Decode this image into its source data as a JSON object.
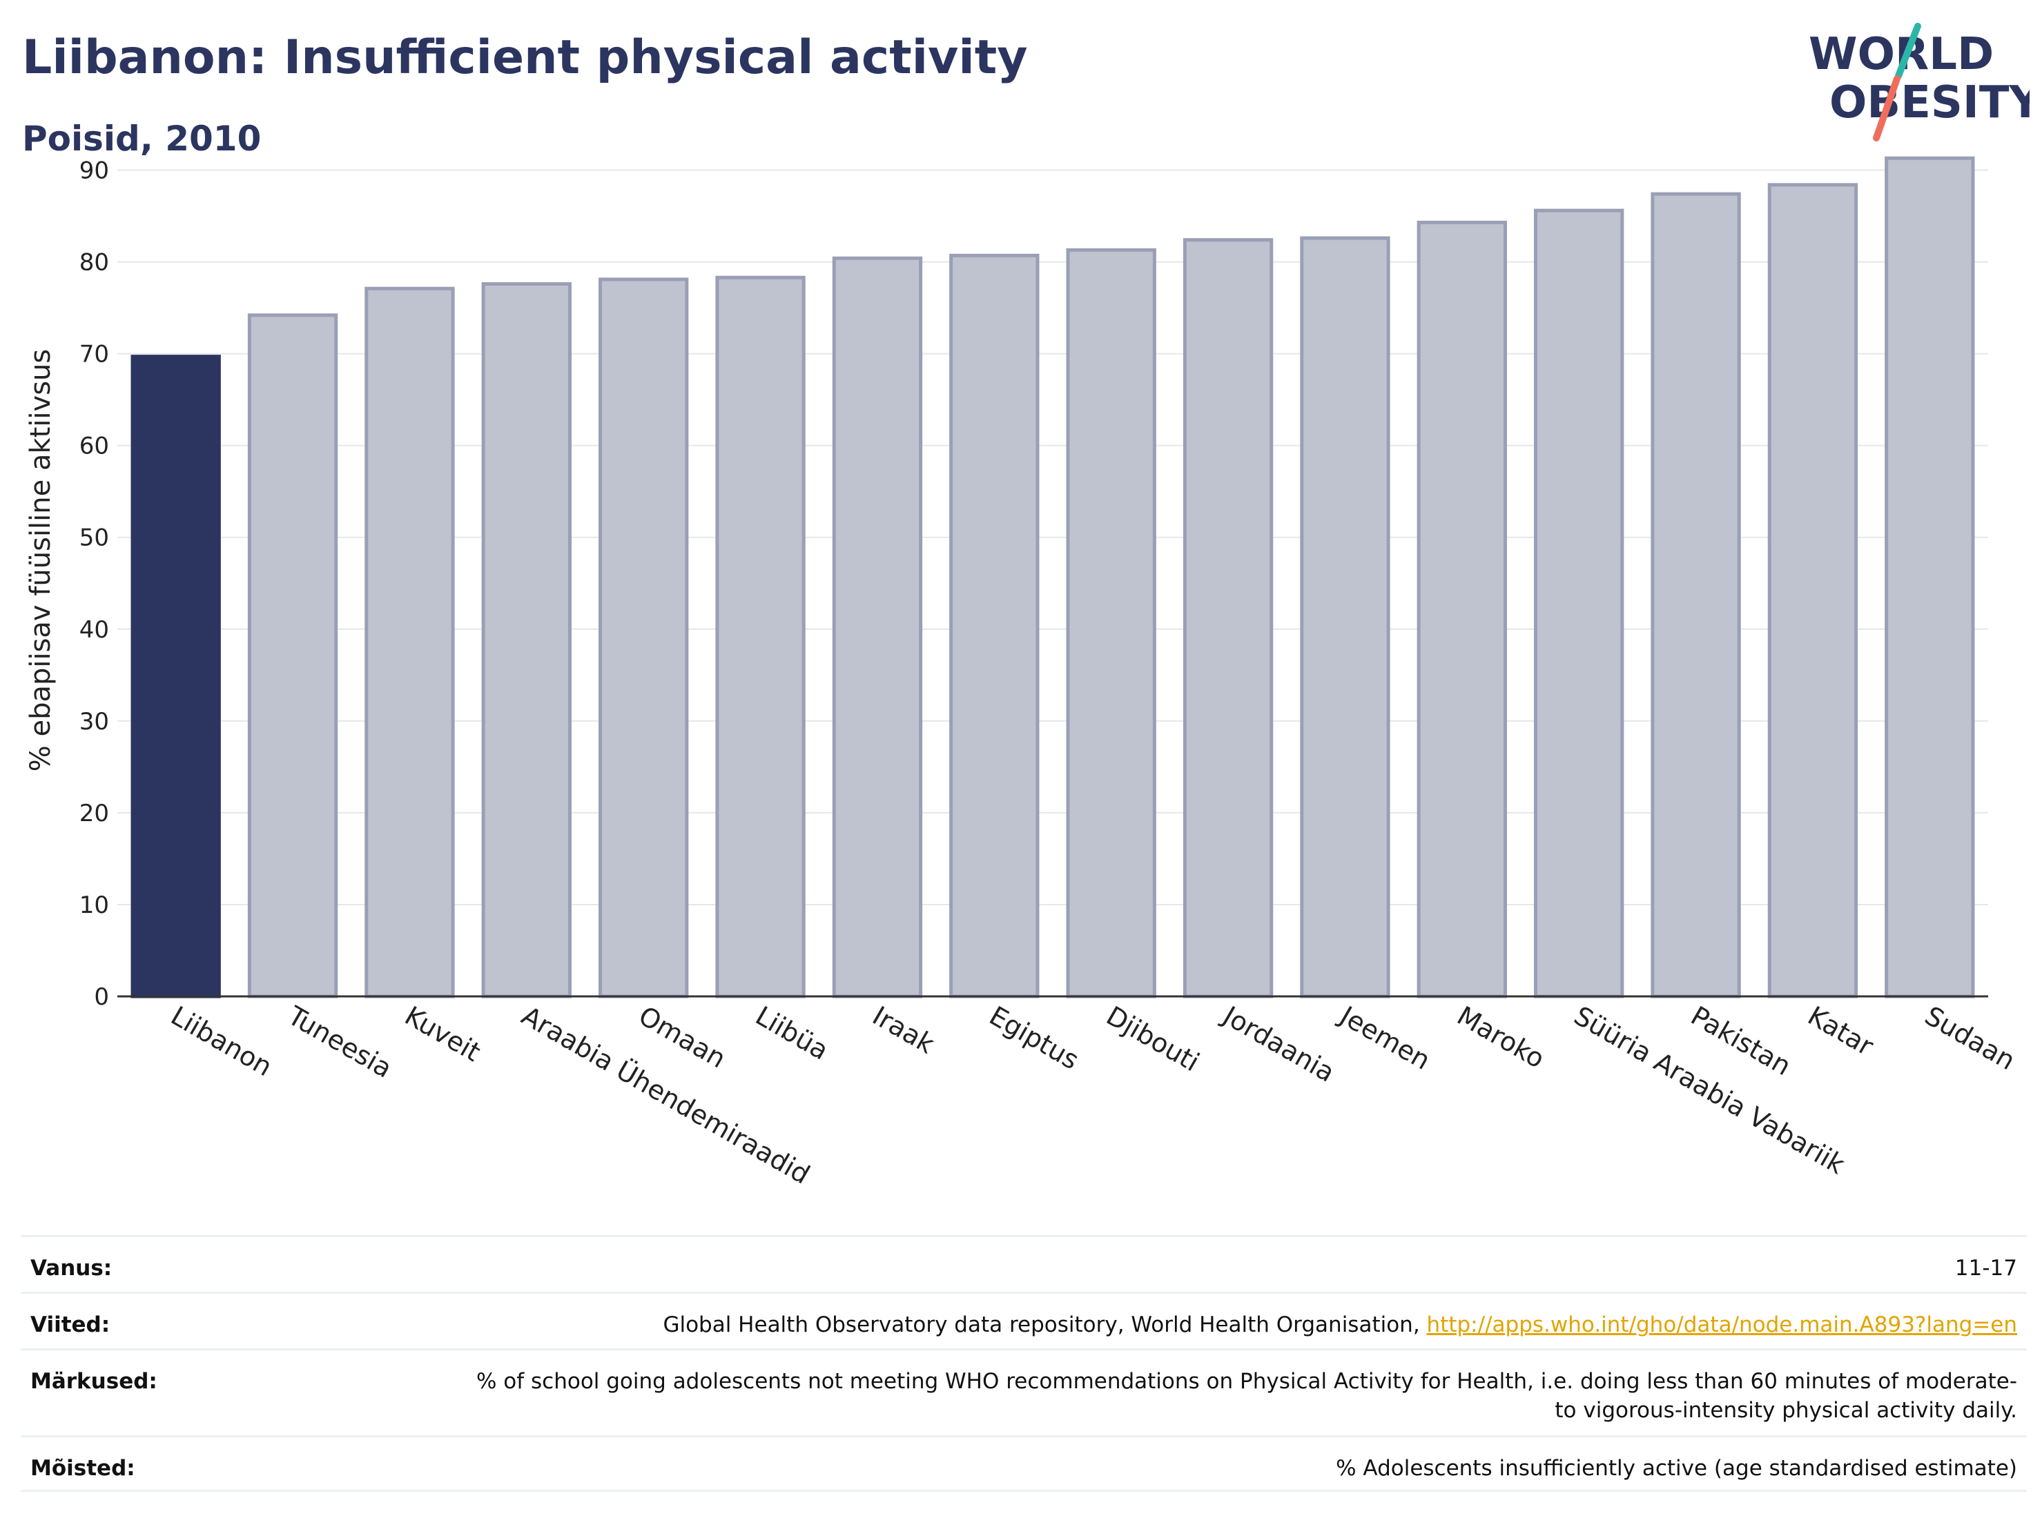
{
  "header": {
    "title": "Liibanon: Insufficient physical activity",
    "subtitle": "Poisid, 2010"
  },
  "logo": {
    "line1": "WORLD",
    "line2": "OBESITY"
  },
  "colors": {
    "highlight": "#2b3560",
    "bar": "#bfc2cf",
    "bar_stroke": "#9a9fb6",
    "title": "#2b3560",
    "link": "#e2a400"
  },
  "chart_data": {
    "type": "bar",
    "categories": [
      "Liibanon",
      "Tuneesia",
      "Kuveit",
      "Araabia Ühendemiraadid",
      "Omaan",
      "Liibüa",
      "Iraak",
      "Egiptus",
      "Djibouti",
      "Jordaania",
      "Jeemen",
      "Maroko",
      "Süüria Araabia Vabariik",
      "Pakistan",
      "Katar",
      "Sudaan"
    ],
    "values": [
      69.7,
      74.2,
      77.1,
      77.6,
      78.1,
      78.3,
      80.4,
      80.7,
      81.3,
      82.4,
      82.6,
      84.3,
      85.6,
      87.4,
      88.4,
      91.3
    ],
    "highlight_index": 0,
    "ylabel": "% ebapiisav füüsiline aktiivsus",
    "xlabel": "",
    "ylim": [
      0,
      95
    ],
    "yticks": [
      0,
      10,
      20,
      30,
      40,
      50,
      60,
      70,
      80,
      90
    ],
    "grid": true
  },
  "notes": [
    {
      "label": "Vanus:",
      "value": "11-17",
      "link": ""
    },
    {
      "label": "Viited:",
      "value": "Global Health Observatory data repository, World Health Organisation, ",
      "link": "http://apps.who.int/gho/data/node.main.A893?lang=en"
    },
    {
      "label": "Märkused:",
      "value": "% of school going adolescents not meeting WHO recommendations on Physical Activity for Health, i.e. doing less than 60 minutes of moderate- to vigorous-intensity physical activity daily.",
      "link": ""
    },
    {
      "label": "Mõisted:",
      "value": "% Adolescents insufficiently active (age standardised estimate)",
      "link": ""
    }
  ]
}
